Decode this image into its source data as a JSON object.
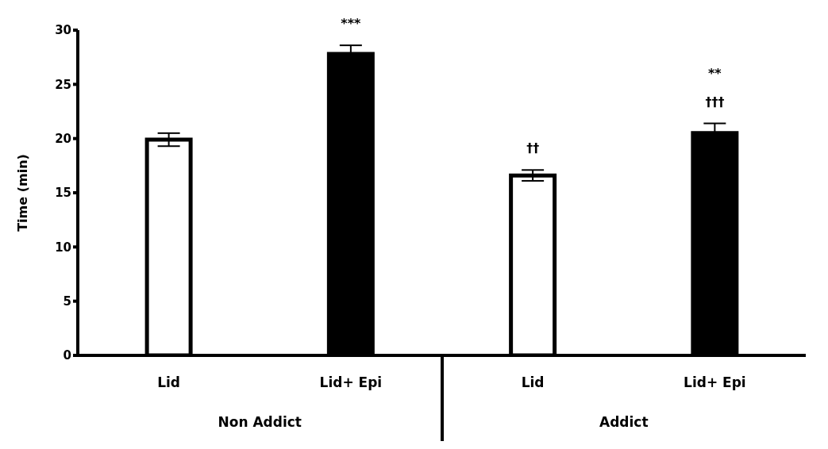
{
  "chart_data": {
    "type": "bar",
    "ylabel": "Time (min)",
    "categories": [
      "Lid",
      "Lid+ Epi",
      "Lid",
      "Lid+ Epi"
    ],
    "values": [
      19.9,
      27.8,
      16.6,
      20.5
    ],
    "errors": [
      0.6,
      0.8,
      0.5,
      0.9
    ],
    "colors": [
      "#ffffff",
      "#000000",
      "#ffffff",
      "#000000"
    ],
    "ylim": [
      0,
      30
    ],
    "yticks": [
      0,
      5,
      10,
      15,
      20,
      25,
      30
    ],
    "grid": false,
    "legend": false,
    "annotations": [
      {
        "text": "***",
        "x": "Lid+ Epi",
        "y": 27.8
      },
      "††",
      "†††",
      "**",
      "Non Addict",
      "Addict"
    ]
  }
}
